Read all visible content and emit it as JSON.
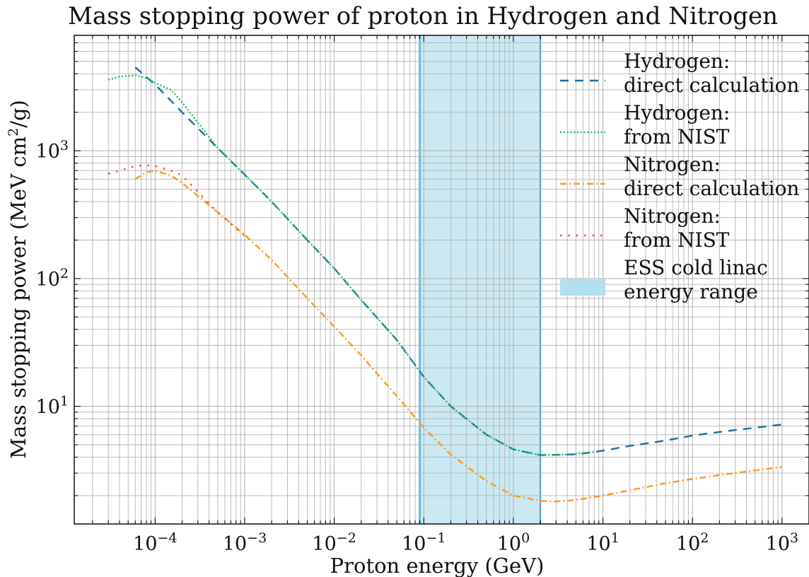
{
  "chart_data": {
    "type": "line",
    "title": "Mass stopping power of proton in Hydrogen and Nitrogen",
    "xlabel": "Proton energy (GeV)",
    "ylabel_main": "Mass stopping power (MeV cm",
    "ylabel_sup": "2",
    "ylabel_tail": "/g)",
    "xscale": "log",
    "yscale": "log",
    "xlim": [
      1.25e-05,
      2000
    ],
    "ylim": [
      1.2,
      8000
    ],
    "grid": true,
    "legend_position": "top-right",
    "x_ticks": [
      {
        "base": "10",
        "exp": "−4",
        "value": 0.0001
      },
      {
        "base": "10",
        "exp": "−3",
        "value": 0.001
      },
      {
        "base": "10",
        "exp": "−2",
        "value": 0.01
      },
      {
        "base": "10",
        "exp": "−1",
        "value": 0.1
      },
      {
        "base": "10",
        "exp": "0",
        "value": 1
      },
      {
        "base": "10",
        "exp": "1",
        "value": 10
      },
      {
        "base": "10",
        "exp": "2",
        "value": 100
      },
      {
        "base": "10",
        "exp": "3",
        "value": 1000
      }
    ],
    "y_ticks": [
      {
        "base": "10",
        "exp": "1",
        "value": 10
      },
      {
        "base": "10",
        "exp": "2",
        "value": 100
      },
      {
        "base": "10",
        "exp": "3",
        "value": 1000
      }
    ],
    "shaded_range": {
      "x_start": 0.09,
      "x_end": 2.0,
      "fill": "#b3dfee",
      "edge": "#1f8fbf",
      "legend_label": [
        "ESS cold linac",
        "energy range"
      ]
    },
    "series": [
      {
        "name": [
          "Hydrogen:",
          "direct calculation"
        ],
        "color": "#1a6fa6",
        "style": "dashed",
        "x": [
          6e-05,
          0.0001,
          0.0002,
          0.0005,
          0.001,
          0.002,
          0.005,
          0.01,
          0.02,
          0.05,
          0.1,
          0.2,
          0.5,
          1,
          2,
          5,
          10,
          20,
          50,
          100,
          200,
          500,
          1000
        ],
        "y": [
          4500,
          3300,
          2000,
          1050,
          650,
          400,
          200,
          120,
          68,
          33,
          17,
          10,
          6,
          4.6,
          4.15,
          4.2,
          4.5,
          4.9,
          5.4,
          5.9,
          6.3,
          6.8,
          7.2
        ]
      },
      {
        "name": [
          "Hydrogen:",
          "from NIST"
        ],
        "color": "#2eb872",
        "style": "dotted",
        "x": [
          3e-05,
          4e-05,
          6e-05,
          8e-05,
          0.0001,
          0.00015,
          0.0002,
          0.0005,
          0.001,
          0.002,
          0.005,
          0.01,
          0.02,
          0.05,
          0.1,
          0.2,
          0.5,
          1,
          2,
          4,
          8
        ],
        "y": [
          3600,
          3800,
          3900,
          3700,
          3400,
          3000,
          2400,
          1050,
          650,
          400,
          200,
          120,
          68,
          33,
          17,
          10,
          6,
          4.6,
          4.15,
          4.2,
          4.4
        ]
      },
      {
        "name": [
          "Nitrogen:",
          "direct calculation"
        ],
        "color": "#ff9a1f",
        "style": "dashdot",
        "x": [
          6e-05,
          8e-05,
          0.0001,
          0.00015,
          0.0002,
          0.0005,
          0.001,
          0.002,
          0.005,
          0.01,
          0.02,
          0.05,
          0.1,
          0.2,
          0.5,
          1,
          2,
          3,
          5,
          10,
          20,
          50,
          100,
          200,
          500,
          1000
        ],
        "y": [
          600,
          680,
          700,
          640,
          560,
          330,
          220,
          140,
          70,
          42,
          25,
          12,
          6.8,
          4.2,
          2.6,
          2.0,
          1.82,
          1.8,
          1.85,
          2.0,
          2.2,
          2.5,
          2.7,
          2.9,
          3.15,
          3.35
        ]
      },
      {
        "name": [
          "Nitrogen:",
          "from NIST"
        ],
        "color": "#e8502a",
        "style": "sparse-dotted",
        "x": [
          3e-05,
          4e-05,
          6e-05,
          8e-05,
          0.0001,
          0.00015,
          0.0002,
          0.0005,
          0.001
        ],
        "y": [
          660,
          700,
          760,
          770,
          760,
          700,
          640,
          330,
          215
        ]
      }
    ]
  }
}
